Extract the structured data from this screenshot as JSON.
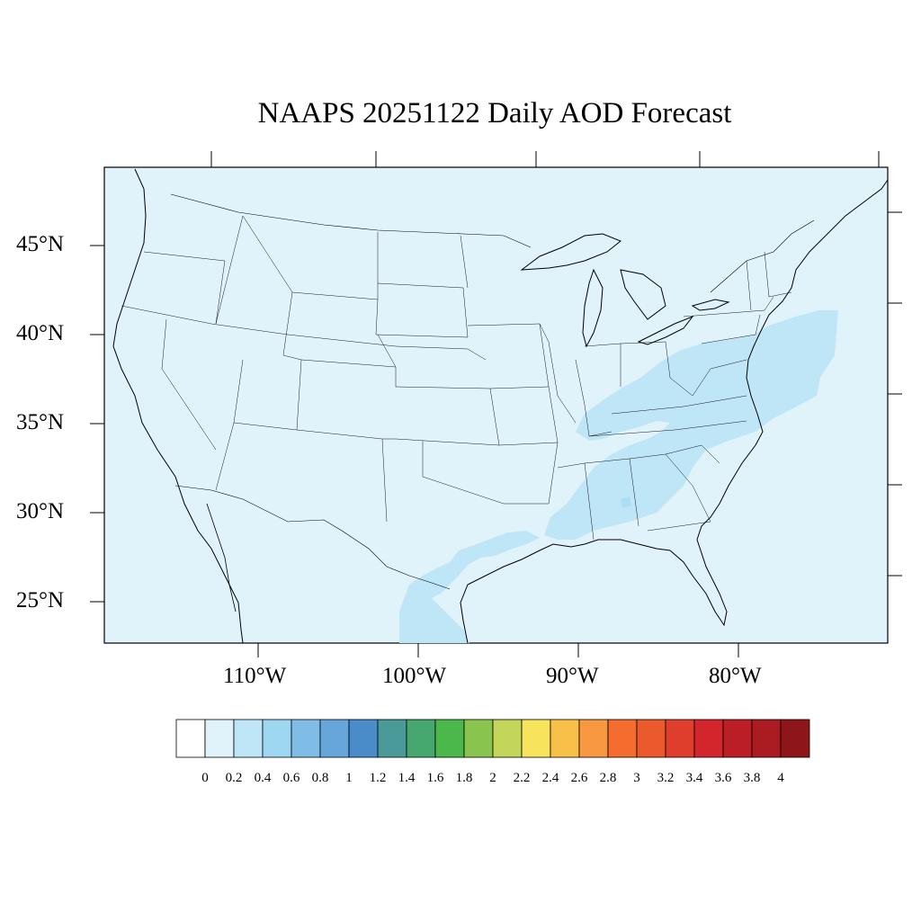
{
  "title": "NAAPS 20251122 Daily AOD Forecast",
  "map": {
    "lat_labels": [
      "45°N",
      "40°N",
      "35°N",
      "30°N",
      "25°N"
    ],
    "lon_labels": [
      "110°W",
      "100°W",
      "90°W",
      "80°W"
    ],
    "background_color": "#e0f3fa",
    "region": "Contiguous United States"
  },
  "colorbar": {
    "labels": [
      "0",
      "0.2",
      "0.4",
      "0.6",
      "0.8",
      "1",
      "1.2",
      "1.4",
      "1.6",
      "1.8",
      "2",
      "2.2",
      "2.4",
      "2.6",
      "2.8",
      "3",
      "3.2",
      "3.4",
      "3.6",
      "3.8",
      "4"
    ],
    "colors": [
      "#ffffff",
      "#e0f3fa",
      "#bfe6f7",
      "#9ed7f2",
      "#80bde6",
      "#66a6da",
      "#4a8cca",
      "#4a9a9a",
      "#46a86e",
      "#4ab84a",
      "#88c44e",
      "#c4d65a",
      "#f8e45c",
      "#f8c048",
      "#f89840",
      "#f46c2e",
      "#ea5a2c",
      "#e03e2c",
      "#d2252c",
      "#bc1e26",
      "#aa1b22",
      "#8e161b"
    ]
  }
}
